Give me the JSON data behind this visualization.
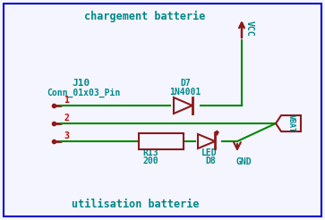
{
  "title_top": "chargement batterie",
  "title_bottom": "utilisation batterie",
  "bg_color": "#f5f5ff",
  "border_color": "#0000cc",
  "wire_color": "#008800",
  "component_color": "#8b1a1a",
  "text_color": "#008888",
  "label_color": "#cc0000",
  "vcc_label": "VCC",
  "vbat_label": "VBAT",
  "gnd_label": "GND",
  "j10_label": "J10",
  "conn_label": "Conn_01x03_Pin",
  "d7_label": "D7",
  "d7_sub": "1N4001",
  "r13_label": "R13",
  "r13_sub": "200",
  "led_label": "LED",
  "led_sub": "D8",
  "pin1_label": "1",
  "pin2_label": "2",
  "pin3_label": "3",
  "figw": 3.63,
  "figh": 2.46,
  "dpi": 100
}
